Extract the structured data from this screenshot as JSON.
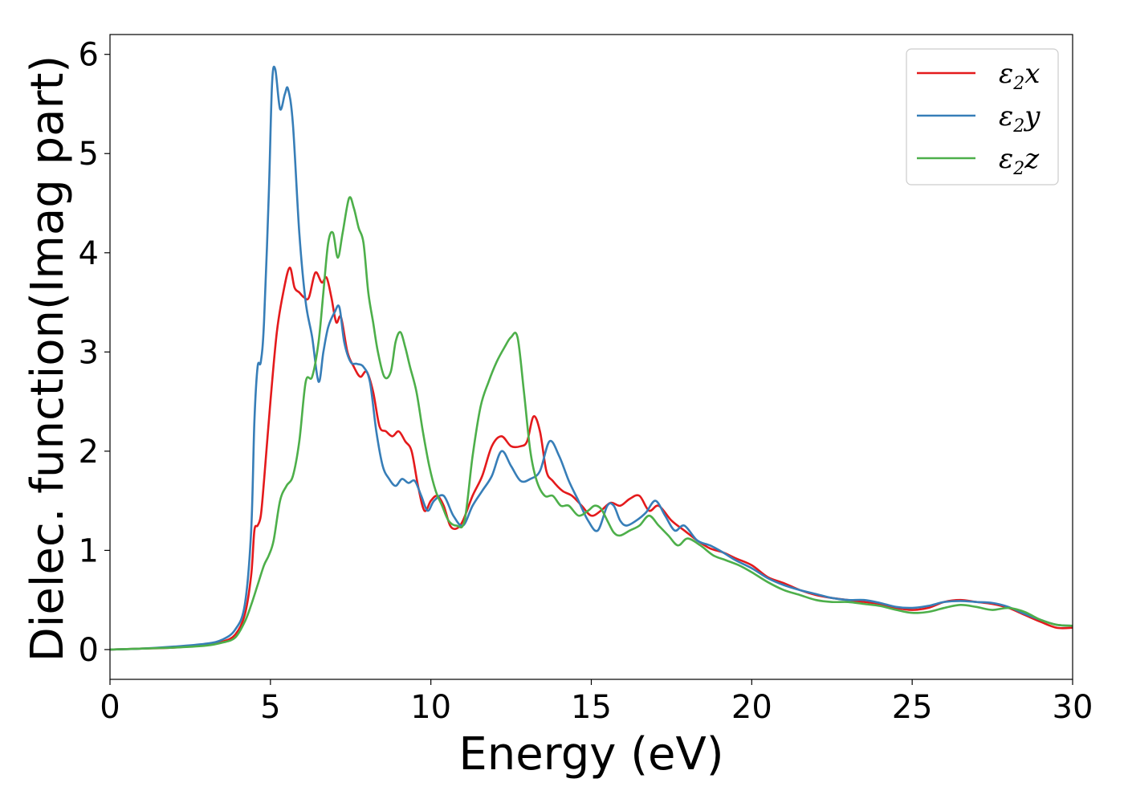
{
  "chart_data": {
    "type": "line",
    "xlabel": "Energy (eV)",
    "ylabel": "Dielec. function(Imag part)",
    "xlim": [
      0,
      30
    ],
    "ylim": [
      -0.3,
      6.2
    ],
    "xticks": [
      0,
      5,
      10,
      15,
      20,
      25,
      30
    ],
    "yticks": [
      0,
      1,
      2,
      3,
      4,
      5,
      6
    ],
    "xtick_labels": [
      "0",
      "5",
      "10",
      "15",
      "20",
      "25",
      "30"
    ],
    "ytick_labels": [
      "0",
      "1",
      "2",
      "3",
      "4",
      "5",
      "6"
    ],
    "grid": false,
    "legend_position": "top-right",
    "series": [
      {
        "name": "ε2x",
        "legend_base": "ε",
        "legend_sub": "2",
        "legend_suffix": "x",
        "color": "#e41a1c",
        "x": [
          0,
          1,
          2,
          3,
          3.5,
          3.9,
          4.2,
          4.4,
          4.5,
          4.6,
          4.7,
          4.8,
          5.0,
          5.2,
          5.4,
          5.6,
          5.75,
          5.9,
          6.05,
          6.2,
          6.4,
          6.6,
          6.75,
          6.9,
          7.05,
          7.2,
          7.4,
          7.6,
          7.8,
          8.0,
          8.2,
          8.4,
          8.6,
          8.8,
          9.0,
          9.2,
          9.4,
          9.6,
          9.8,
          10.0,
          10.2,
          10.4,
          10.6,
          10.8,
          11.0,
          11.3,
          11.6,
          11.9,
          12.2,
          12.5,
          12.8,
          13.0,
          13.2,
          13.4,
          13.6,
          13.8,
          14.1,
          14.4,
          14.7,
          15.0,
          15.3,
          15.6,
          15.9,
          16.2,
          16.5,
          16.8,
          17.1,
          17.5,
          17.9,
          18.3,
          18.7,
          19.1,
          19.5,
          20.0,
          20.5,
          21.0,
          21.5,
          22.0,
          22.5,
          23.0,
          23.5,
          24.0,
          24.5,
          25.0,
          25.5,
          26.0,
          26.5,
          27.0,
          27.5,
          28.0,
          28.5,
          29.0,
          29.5,
          30.0
        ],
        "values": [
          0,
          0.01,
          0.02,
          0.05,
          0.08,
          0.15,
          0.35,
          0.75,
          1.2,
          1.25,
          1.35,
          1.7,
          2.5,
          3.2,
          3.6,
          3.85,
          3.65,
          3.6,
          3.55,
          3.55,
          3.8,
          3.7,
          3.75,
          3.55,
          3.3,
          3.35,
          3.0,
          2.85,
          2.75,
          2.8,
          2.6,
          2.25,
          2.2,
          2.15,
          2.2,
          2.1,
          2.0,
          1.65,
          1.4,
          1.5,
          1.55,
          1.45,
          1.25,
          1.22,
          1.3,
          1.55,
          1.75,
          2.05,
          2.15,
          2.05,
          2.05,
          2.1,
          2.35,
          2.2,
          1.8,
          1.7,
          1.6,
          1.55,
          1.45,
          1.35,
          1.4,
          1.48,
          1.45,
          1.52,
          1.55,
          1.4,
          1.45,
          1.3,
          1.2,
          1.1,
          1.02,
          0.98,
          0.92,
          0.85,
          0.73,
          0.67,
          0.6,
          0.55,
          0.52,
          0.5,
          0.48,
          0.46,
          0.42,
          0.4,
          0.42,
          0.48,
          0.5,
          0.48,
          0.46,
          0.42,
          0.35,
          0.28,
          0.22,
          0.22
        ]
      },
      {
        "name": "ε2y",
        "legend_base": "ε",
        "legend_sub": "2",
        "legend_suffix": "y",
        "color": "#377eb8",
        "x": [
          0,
          1,
          2,
          3,
          3.5,
          3.9,
          4.2,
          4.4,
          4.5,
          4.6,
          4.7,
          4.8,
          4.95,
          5.05,
          5.15,
          5.3,
          5.45,
          5.55,
          5.7,
          5.9,
          6.1,
          6.3,
          6.5,
          6.65,
          6.8,
          7.0,
          7.15,
          7.3,
          7.5,
          7.7,
          7.9,
          8.1,
          8.3,
          8.5,
          8.7,
          8.9,
          9.1,
          9.3,
          9.5,
          9.7,
          9.9,
          10.1,
          10.4,
          10.7,
          11.0,
          11.3,
          11.6,
          11.9,
          12.2,
          12.5,
          12.8,
          13.1,
          13.4,
          13.7,
          14.0,
          14.3,
          14.6,
          14.9,
          15.2,
          15.5,
          15.7,
          15.9,
          16.1,
          16.4,
          16.7,
          17.0,
          17.3,
          17.6,
          17.9,
          18.3,
          18.7,
          19.1,
          19.5,
          20.0,
          20.5,
          21.0,
          21.5,
          22.0,
          22.5,
          23.0,
          23.5,
          24.0,
          24.5,
          25.0,
          25.5,
          26.0,
          26.5,
          27.0,
          27.5,
          28.0,
          28.5,
          29.0,
          29.5,
          30.0
        ],
        "values": [
          0,
          0.01,
          0.03,
          0.06,
          0.1,
          0.2,
          0.45,
          1.2,
          2.3,
          2.85,
          2.9,
          3.3,
          4.6,
          5.7,
          5.85,
          5.45,
          5.6,
          5.65,
          5.3,
          4.2,
          3.5,
          3.15,
          2.7,
          3.0,
          3.25,
          3.4,
          3.45,
          3.1,
          2.9,
          2.88,
          2.85,
          2.7,
          2.2,
          1.85,
          1.72,
          1.65,
          1.72,
          1.68,
          1.7,
          1.55,
          1.4,
          1.5,
          1.55,
          1.35,
          1.25,
          1.45,
          1.6,
          1.75,
          2.0,
          1.85,
          1.7,
          1.72,
          1.8,
          2.1,
          1.95,
          1.7,
          1.5,
          1.3,
          1.2,
          1.45,
          1.45,
          1.3,
          1.25,
          1.3,
          1.38,
          1.5,
          1.35,
          1.2,
          1.25,
          1.1,
          1.05,
          0.98,
          0.9,
          0.82,
          0.72,
          0.65,
          0.6,
          0.56,
          0.52,
          0.5,
          0.5,
          0.47,
          0.43,
          0.42,
          0.44,
          0.48,
          0.49,
          0.48,
          0.47,
          0.43,
          0.36,
          0.3,
          0.25,
          0.24
        ]
      },
      {
        "name": "ε2z",
        "legend_base": "ε",
        "legend_sub": "2",
        "legend_suffix": "z",
        "color": "#4daf4a",
        "x": [
          0,
          1,
          2,
          3,
          3.5,
          3.9,
          4.2,
          4.4,
          4.6,
          4.8,
          4.95,
          5.1,
          5.3,
          5.5,
          5.7,
          5.9,
          6.1,
          6.3,
          6.5,
          6.65,
          6.8,
          6.95,
          7.1,
          7.25,
          7.45,
          7.6,
          7.75,
          7.9,
          8.05,
          8.2,
          8.35,
          8.55,
          8.75,
          8.9,
          9.05,
          9.2,
          9.35,
          9.55,
          9.75,
          9.95,
          10.15,
          10.35,
          10.55,
          10.8,
          11.05,
          11.3,
          11.55,
          11.8,
          12.05,
          12.3,
          12.5,
          12.7,
          12.9,
          13.1,
          13.3,
          13.55,
          13.8,
          14.05,
          14.3,
          14.6,
          14.9,
          15.1,
          15.3,
          15.5,
          15.7,
          15.9,
          16.2,
          16.5,
          16.8,
          17.1,
          17.4,
          17.7,
          18.0,
          18.4,
          18.8,
          19.2,
          19.6,
          20.0,
          20.5,
          21.0,
          21.5,
          22.0,
          22.5,
          23.0,
          23.5,
          24.0,
          24.5,
          25.0,
          25.5,
          26.0,
          26.5,
          27.0,
          27.5,
          28.0,
          28.5,
          29.0,
          29.5,
          30.0
        ],
        "values": [
          0,
          0.01,
          0.02,
          0.04,
          0.07,
          0.12,
          0.28,
          0.45,
          0.65,
          0.85,
          0.95,
          1.1,
          1.5,
          1.65,
          1.75,
          2.1,
          2.7,
          2.75,
          3.1,
          3.6,
          4.1,
          4.2,
          3.95,
          4.2,
          4.55,
          4.45,
          4.25,
          4.1,
          3.6,
          3.3,
          3.0,
          2.75,
          2.8,
          3.1,
          3.2,
          3.05,
          2.85,
          2.6,
          2.2,
          1.85,
          1.6,
          1.45,
          1.3,
          1.25,
          1.3,
          1.95,
          2.45,
          2.7,
          2.9,
          3.05,
          3.15,
          3.15,
          2.6,
          2.0,
          1.7,
          1.55,
          1.55,
          1.45,
          1.45,
          1.35,
          1.4,
          1.45,
          1.42,
          1.3,
          1.18,
          1.15,
          1.2,
          1.25,
          1.35,
          1.25,
          1.15,
          1.05,
          1.12,
          1.05,
          0.95,
          0.9,
          0.85,
          0.78,
          0.68,
          0.6,
          0.55,
          0.5,
          0.48,
          0.48,
          0.46,
          0.44,
          0.4,
          0.37,
          0.38,
          0.42,
          0.45,
          0.43,
          0.4,
          0.42,
          0.38,
          0.3,
          0.25,
          0.24
        ]
      }
    ]
  }
}
